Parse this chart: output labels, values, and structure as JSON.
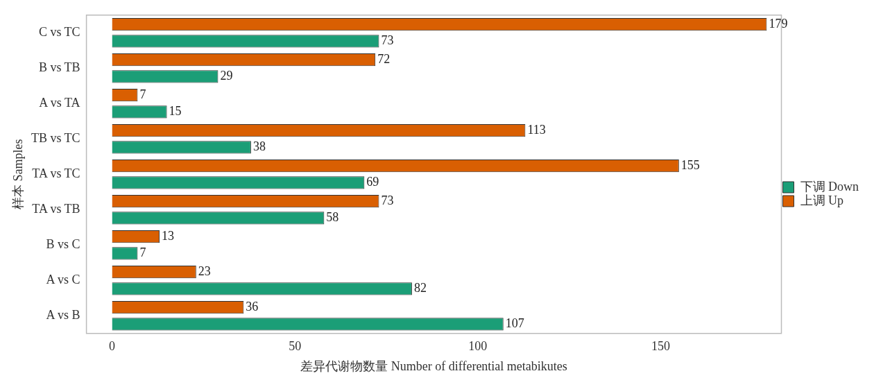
{
  "chart_data": {
    "type": "bar",
    "orientation": "horizontal",
    "xlabel": "差异代谢物数量 Number of differential metabikutes",
    "ylabel": "样本 Samples",
    "categories": [
      "C vs TC",
      "B vs TB",
      "A vs TA",
      "TB vs TC",
      "TA vs TC",
      "TA vs TB",
      "B vs C",
      "A vs C",
      "A vs B"
    ],
    "series": [
      {
        "name": "下调 Down",
        "color": "#1b9e77",
        "values": [
          73,
          29,
          15,
          38,
          69,
          58,
          7,
          82,
          107
        ]
      },
      {
        "name": "上调 Up",
        "color": "#d95f02",
        "values": [
          179,
          72,
          7,
          113,
          155,
          73,
          13,
          23,
          36
        ]
      }
    ],
    "xlim": [
      -7,
      183
    ],
    "xticks": [
      0,
      50,
      100,
      150
    ],
    "grid": false,
    "legend": "right",
    "data_labels": true
  }
}
